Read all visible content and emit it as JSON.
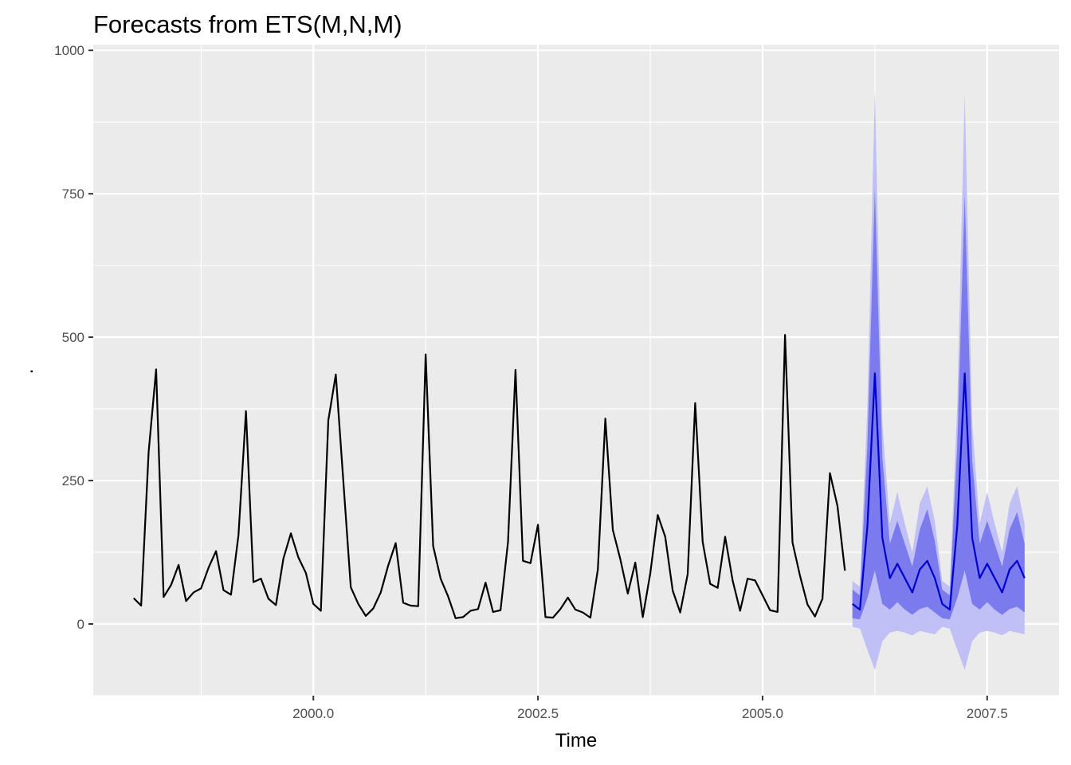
{
  "chart_data": {
    "type": "line",
    "title": "Forecasts from ETS(M,N,M)",
    "xlabel": "Time",
    "ylabel": ".",
    "xlim": [
      1997.55,
      2008.3
    ],
    "ylim": [
      -125,
      1010
    ],
    "x_ticks": [
      2000.0,
      2002.5,
      2005.0,
      2007.5
    ],
    "x_tick_labels": [
      "2000.0",
      "2002.5",
      "2005.0",
      "2007.5"
    ],
    "y_ticks": [
      0,
      250,
      500,
      750,
      1000
    ],
    "y_tick_labels": [
      "0",
      "250",
      "500",
      "750",
      "1000"
    ],
    "grid": true,
    "colors": {
      "panel": "#ebebeb",
      "grid": "#ffffff",
      "history": "#000000",
      "forecast": "#0000cc",
      "band80": "#7b7bee",
      "band95": "#c0c0f6"
    },
    "history": {
      "start": 1998.0,
      "frequency": 12,
      "values": [
        45,
        32,
        300,
        444,
        47,
        68,
        103,
        40,
        55,
        62,
        98,
        127,
        59,
        51,
        155,
        371,
        73,
        79,
        44,
        33,
        114,
        158,
        116,
        89,
        35,
        23,
        355,
        435,
        250,
        64,
        35,
        14,
        27,
        55,
        102,
        141,
        37,
        32,
        31,
        470,
        136,
        79,
        48,
        10,
        12,
        23,
        26,
        72,
        21,
        24,
        143,
        443,
        110,
        106,
        173,
        12,
        11,
        26,
        46,
        25,
        20,
        11,
        95,
        358,
        164,
        113,
        53,
        107,
        12,
        88,
        190,
        152,
        58,
        20,
        87,
        385,
        143,
        70,
        63,
        152,
        76,
        23,
        79,
        76,
        50,
        24,
        21,
        504,
        142,
        84,
        34,
        13,
        44,
        263,
        206,
        93
      ]
    },
    "forecast": {
      "start": 2006.0,
      "frequency": 12,
      "mean": [
        35,
        25,
        170,
        437,
        150,
        80,
        105,
        80,
        55,
        95,
        110,
        80,
        35,
        25,
        170,
        437,
        150,
        80,
        105,
        80,
        55,
        95,
        110,
        80
      ],
      "lo80": [
        10,
        8,
        45,
        93,
        35,
        25,
        38,
        25,
        16,
        26,
        30,
        20,
        10,
        8,
        45,
        93,
        35,
        25,
        38,
        25,
        16,
        26,
        30,
        20
      ],
      "hi80": [
        60,
        50,
        310,
        760,
        290,
        140,
        180,
        140,
        100,
        165,
        200,
        145,
        60,
        50,
        310,
        750,
        285,
        140,
        180,
        140,
        100,
        165,
        195,
        140
      ],
      "lo95": [
        -5,
        -8,
        -45,
        -80,
        -30,
        -15,
        -12,
        -15,
        -20,
        -12,
        -15,
        -18,
        -5,
        -8,
        -45,
        -80,
        -30,
        -15,
        -12,
        -15,
        -20,
        -12,
        -15,
        -18
      ],
      "hi95": [
        75,
        65,
        380,
        930,
        350,
        175,
        230,
        175,
        125,
        210,
        240,
        180,
        75,
        65,
        380,
        925,
        350,
        175,
        230,
        175,
        125,
        210,
        240,
        175
      ]
    }
  }
}
